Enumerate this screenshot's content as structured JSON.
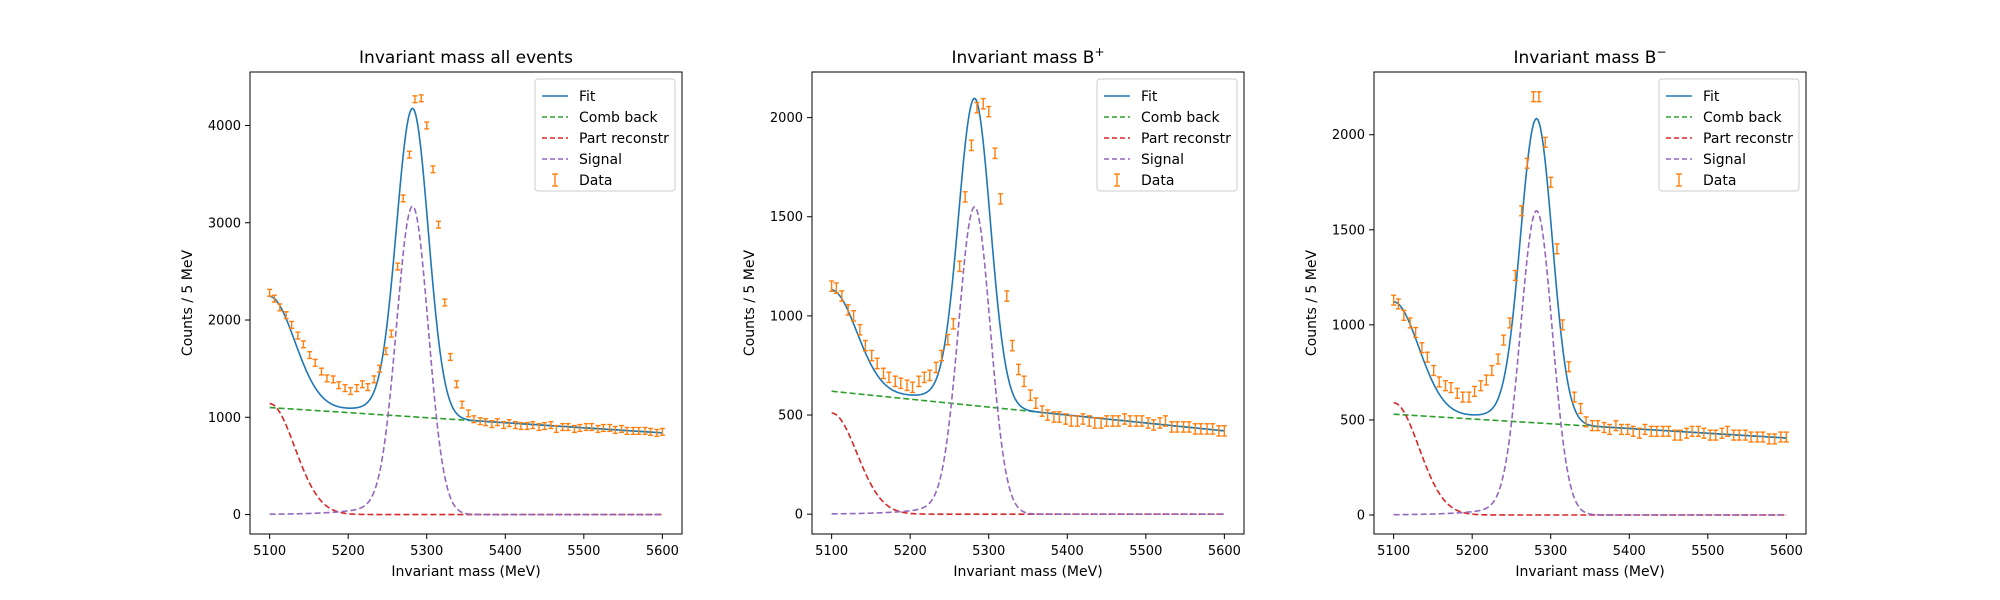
{
  "chart_data": [
    {
      "type": "line",
      "title_text": "Invariant mass all events",
      "title_sup": "",
      "xlabel": "Invariant mass (MeV)",
      "ylabel": "Counts / 5 MeV",
      "xlim": [
        5075,
        5625
      ],
      "ylim": [
        -200,
        4550
      ],
      "xticks": [
        5100,
        5200,
        5300,
        5400,
        5500,
        5600
      ],
      "yticks": [
        0,
        1000,
        2000,
        3000,
        4000
      ],
      "legend_position": "top-right",
      "legend": [
        "Fit",
        "Comb back",
        "Part reconstr",
        "Signal",
        "Data"
      ],
      "colors": {
        "fit": "#1f77b4",
        "comb": "#2ca02c",
        "part": "#d62728",
        "signal": "#9467bd",
        "data": "#ff7f0e"
      },
      "comb": [
        1100,
        840
      ],
      "part": {
        "amp": 1140,
        "mu": 5100,
        "sigma": 32
      },
      "signal": {
        "peak": 3170,
        "mu": 5282,
        "sl": 20,
        "sr": 20,
        "tail_amp": 260,
        "tail_w": 42
      },
      "data_x": [
        5100,
        5106,
        5113,
        5121,
        5128,
        5136,
        5143,
        5151,
        5158,
        5166,
        5173,
        5181,
        5188,
        5196,
        5203,
        5211,
        5218,
        5225,
        5233,
        5240,
        5248,
        5255,
        5263,
        5270,
        5278,
        5285,
        5293,
        5300,
        5308,
        5315,
        5323,
        5330,
        5338,
        5345,
        5353,
        5360,
        5368,
        5375,
        5383,
        5390,
        5398,
        5405,
        5413,
        5420,
        5428,
        5435,
        5443,
        5450,
        5458,
        5465,
        5473,
        5480,
        5488,
        5495,
        5503,
        5510,
        5518,
        5525,
        5533,
        5540,
        5548,
        5555,
        5563,
        5570,
        5578,
        5585,
        5593,
        5600
      ],
      "data_y": [
        2280,
        2220,
        2130,
        2050,
        1950,
        1840,
        1750,
        1640,
        1560,
        1470,
        1400,
        1390,
        1330,
        1300,
        1270,
        1300,
        1340,
        1310,
        1390,
        1500,
        1680,
        1860,
        2550,
        3250,
        3700,
        4270,
        4280,
        4000,
        3550,
        2980,
        2180,
        1620,
        1340,
        1130,
        1040,
        980,
        960,
        950,
        930,
        950,
        920,
        940,
        920,
        910,
        910,
        920,
        900,
        910,
        920,
        880,
        900,
        900,
        880,
        890,
        900,
        900,
        880,
        890,
        890,
        870,
        880,
        860,
        860,
        860,
        860,
        850,
        840,
        850
      ],
      "data_err": 35
    },
    {
      "type": "line",
      "title_text": "Invariant mass B",
      "title_sup": "+",
      "xlabel": "Invariant mass (MeV)",
      "ylabel": "Counts / 5 MeV",
      "xlim": [
        5075,
        5625
      ],
      "ylim": [
        -100,
        2230
      ],
      "xticks": [
        5100,
        5200,
        5300,
        5400,
        5500,
        5600
      ],
      "yticks": [
        0,
        500,
        1000,
        1500,
        2000
      ],
      "legend_position": "top-right",
      "legend": [
        "Fit",
        "Comb back",
        "Part reconstr",
        "Signal",
        "Data"
      ],
      "colors": {
        "fit": "#1f77b4",
        "comb": "#2ca02c",
        "part": "#d62728",
        "signal": "#9467bd",
        "data": "#ff7f0e"
      },
      "comb": [
        620,
        420
      ],
      "part": {
        "amp": 510,
        "mu": 5100,
        "sigma": 32
      },
      "signal": {
        "peak": 1550,
        "mu": 5282,
        "sl": 20,
        "sr": 20,
        "tail_amp": 120,
        "tail_w": 42
      },
      "data_x": [
        5100,
        5106,
        5113,
        5121,
        5128,
        5136,
        5143,
        5151,
        5158,
        5166,
        5173,
        5181,
        5188,
        5196,
        5203,
        5211,
        5218,
        5225,
        5233,
        5240,
        5248,
        5255,
        5263,
        5270,
        5278,
        5285,
        5293,
        5300,
        5308,
        5315,
        5323,
        5330,
        5338,
        5345,
        5353,
        5360,
        5368,
        5375,
        5383,
        5390,
        5398,
        5405,
        5413,
        5420,
        5428,
        5435,
        5443,
        5450,
        5458,
        5465,
        5473,
        5480,
        5488,
        5495,
        5503,
        5510,
        5518,
        5525,
        5533,
        5540,
        5548,
        5555,
        5563,
        5570,
        5578,
        5585,
        5593,
        5600
      ],
      "data_y": [
        1150,
        1140,
        1100,
        1030,
        1000,
        930,
        850,
        800,
        760,
        710,
        690,
        670,
        660,
        650,
        640,
        670,
        690,
        700,
        740,
        800,
        880,
        960,
        1250,
        1600,
        1860,
        2050,
        2070,
        2030,
        1820,
        1590,
        1100,
        850,
        730,
        670,
        600,
        560,
        520,
        500,
        490,
        490,
        480,
        470,
        470,
        480,
        470,
        460,
        460,
        470,
        470,
        470,
        480,
        470,
        470,
        470,
        460,
        450,
        460,
        470,
        440,
        440,
        440,
        440,
        430,
        430,
        430,
        430,
        420,
        420
      ],
      "data_err": 26
    },
    {
      "type": "line",
      "title_text": "Invariant mass B",
      "title_sup": "−",
      "xlabel": "Invariant mass (MeV)",
      "ylabel": "Counts / 5 MeV",
      "xlim": [
        5075,
        5625
      ],
      "ylim": [
        -100,
        2330
      ],
      "xticks": [
        5100,
        5200,
        5300,
        5400,
        5500,
        5600
      ],
      "yticks": [
        0,
        500,
        1000,
        1500,
        2000
      ],
      "legend_position": "top-right",
      "legend": [
        "Fit",
        "Comb back",
        "Part reconstr",
        "Signal",
        "Data"
      ],
      "colors": {
        "fit": "#1f77b4",
        "comb": "#2ca02c",
        "part": "#d62728",
        "signal": "#9467bd",
        "data": "#ff7f0e"
      },
      "comb": [
        530,
        405
      ],
      "part": {
        "amp": 590,
        "mu": 5100,
        "sigma": 32
      },
      "signal": {
        "peak": 1600,
        "mu": 5282,
        "sl": 20,
        "sr": 20,
        "tail_amp": 120,
        "tail_w": 42
      },
      "data_x": [
        5100,
        5106,
        5113,
        5121,
        5128,
        5136,
        5143,
        5151,
        5158,
        5166,
        5173,
        5181,
        5188,
        5196,
        5203,
        5211,
        5218,
        5225,
        5233,
        5240,
        5248,
        5255,
        5263,
        5270,
        5278,
        5285,
        5293,
        5300,
        5308,
        5315,
        5323,
        5330,
        5338,
        5345,
        5353,
        5360,
        5368,
        5375,
        5383,
        5390,
        5398,
        5405,
        5413,
        5420,
        5428,
        5435,
        5443,
        5450,
        5458,
        5465,
        5473,
        5480,
        5488,
        5495,
        5503,
        5510,
        5518,
        5525,
        5533,
        5540,
        5548,
        5555,
        5563,
        5570,
        5578,
        5585,
        5593,
        5600
      ],
      "data_y": [
        1130,
        1110,
        1050,
        1010,
        960,
        880,
        830,
        760,
        700,
        680,
        670,
        640,
        620,
        620,
        650,
        680,
        710,
        760,
        820,
        920,
        1010,
        1260,
        1600,
        1850,
        2200,
        2200,
        1960,
        1750,
        1400,
        1000,
        780,
        620,
        560,
        490,
        470,
        470,
        460,
        450,
        470,
        450,
        450,
        440,
        430,
        450,
        440,
        440,
        440,
        440,
        420,
        420,
        430,
        440,
        440,
        430,
        420,
        420,
        430,
        440,
        420,
        420,
        420,
        410,
        410,
        410,
        400,
        400,
        410,
        410
      ],
      "data_err": 26
    }
  ]
}
